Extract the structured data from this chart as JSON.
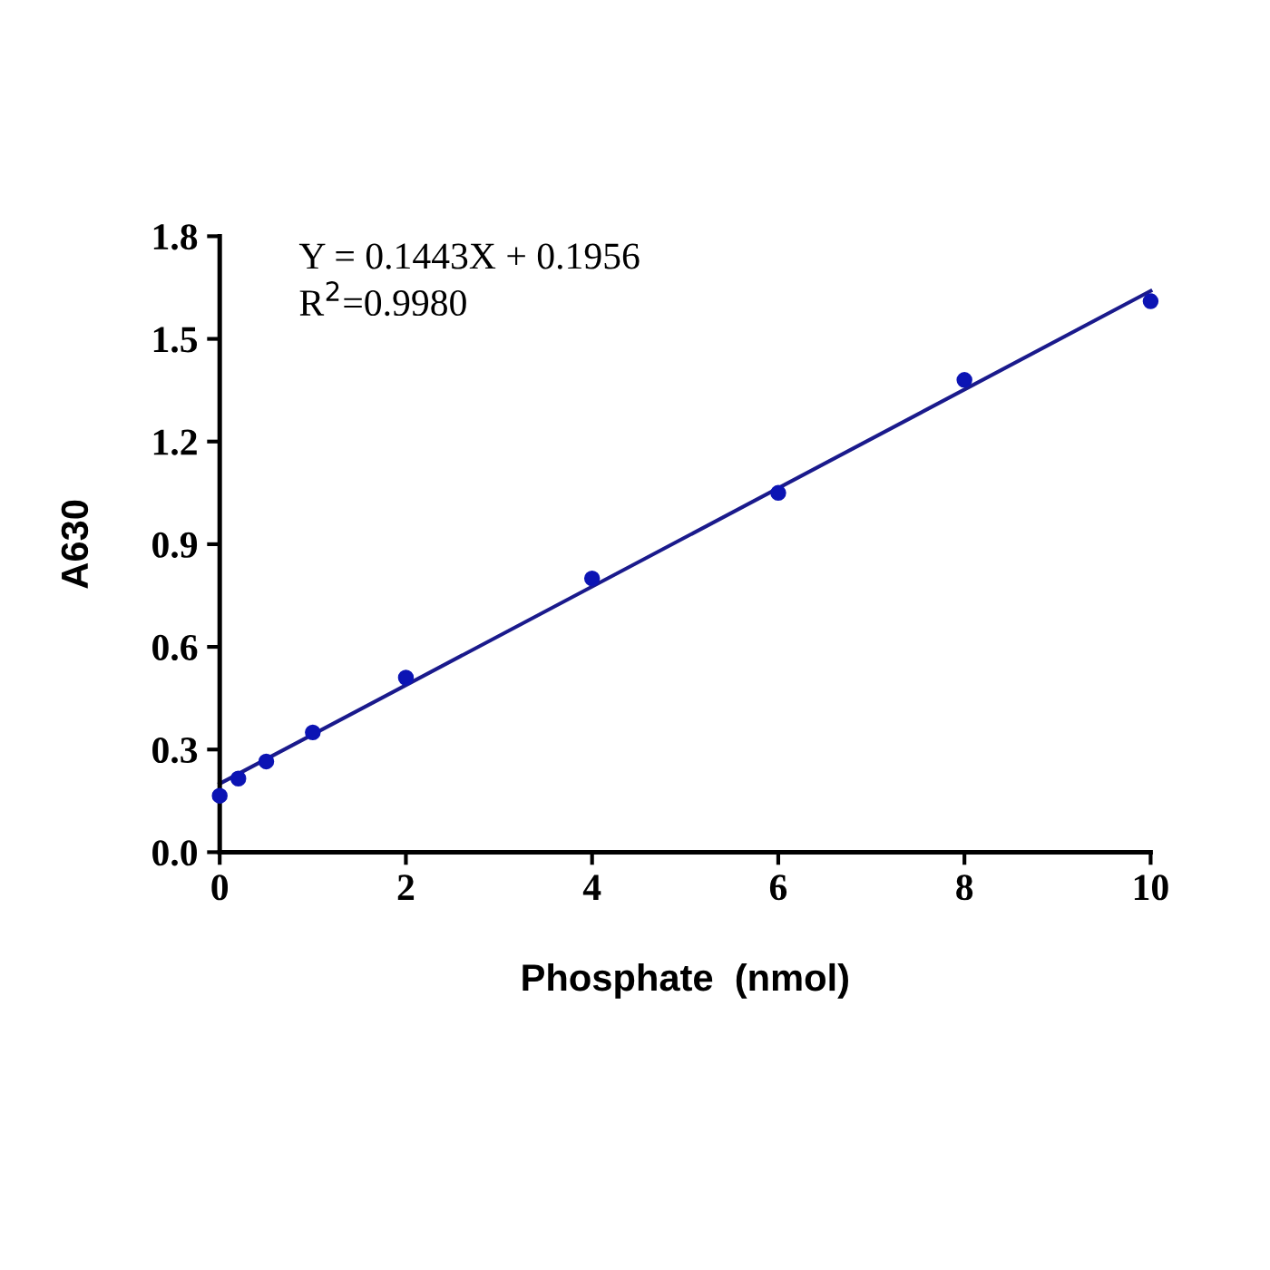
{
  "chart_data": {
    "type": "scatter",
    "xlabel": "Phosphate  (nmol)",
    "ylabel": "A630",
    "annotations": [
      "Y = 0.1443X + 0.1956",
      "R$^{2}$=0.9980"
    ],
    "series": [
      {
        "color": "#0c14b4",
        "marker": "circle",
        "x": [
          0,
          0.2,
          0.5,
          1,
          2,
          4,
          6,
          8,
          10
        ],
        "values": [
          0.165,
          0.215,
          0.265,
          0.35,
          0.51,
          0.8,
          1.05,
          1.38,
          1.61
        ]
      },
      {
        "type": "line",
        "color": "#1a1a8c",
        "marker": "none",
        "line_style": "solid",
        "x": [
          0,
          10
        ],
        "values": [
          0.2,
          1.64
        ]
      }
    ],
    "xlim": [
      0,
      10
    ],
    "xticks": [
      0,
      2,
      4,
      6,
      8,
      10
    ],
    "ylim": [
      0,
      1.8
    ],
    "yticks": [
      {
        "value": 0,
        "label": "0.0"
      },
      {
        "value": 0.3,
        "label": "0.3"
      },
      {
        "value": 0.6,
        "label": "0.6"
      },
      {
        "value": 0.9,
        "label": "0.9"
      },
      {
        "value": 1.2,
        "label": "1.2"
      },
      {
        "value": 1.5,
        "label": "1.5"
      },
      {
        "value": 1.8,
        "label": "1.8"
      }
    ],
    "grid": false,
    "legend": false
  }
}
